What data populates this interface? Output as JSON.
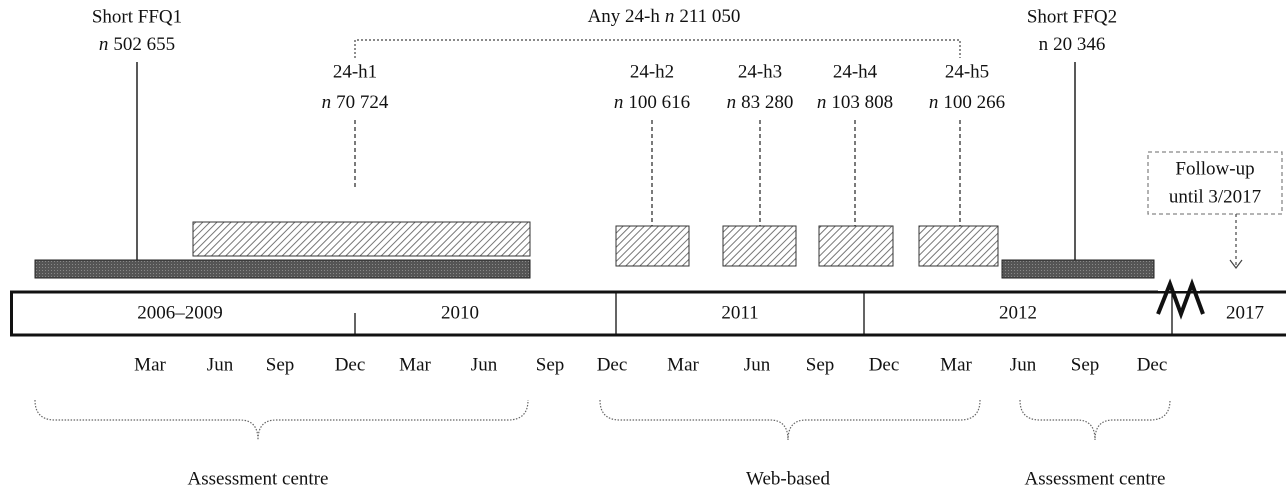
{
  "ffq": [
    {
      "title": "Short FFQ1",
      "n_label": "n",
      "count": "502 655"
    },
    {
      "title": "Short FFQ2",
      "n_label": "n",
      "count": "20 346"
    }
  ],
  "any_24h": {
    "label": "Any 24-h",
    "n_label": "n",
    "count": "211 050"
  },
  "recalls": [
    {
      "label": "24-h1",
      "n_label": "n",
      "count": "70 724"
    },
    {
      "label": "24-h2",
      "n_label": "n",
      "count": "100 616"
    },
    {
      "label": "24-h3",
      "n_label": "n",
      "count": "83 280"
    },
    {
      "label": "24-h4",
      "n_label": "n",
      "count": "103 808"
    },
    {
      "label": "24-h5",
      "n_label": "n",
      "count": "100 266"
    }
  ],
  "follow_up": [
    "Follow-up",
    "until 3/2017"
  ],
  "periods": [
    "2006–2009",
    "2010",
    "2011",
    "2012",
    "2017"
  ],
  "months": [
    "Mar",
    "Jun",
    "Sep",
    "Dec",
    "Mar",
    "Jun",
    "Sep",
    "Dec",
    "Mar",
    "Jun",
    "Sep",
    "Dec",
    "Mar",
    "Jun",
    "Sep",
    "Dec"
  ],
  "phases": [
    "Assessment centre",
    "Web-based",
    "Assessment centre"
  ]
}
